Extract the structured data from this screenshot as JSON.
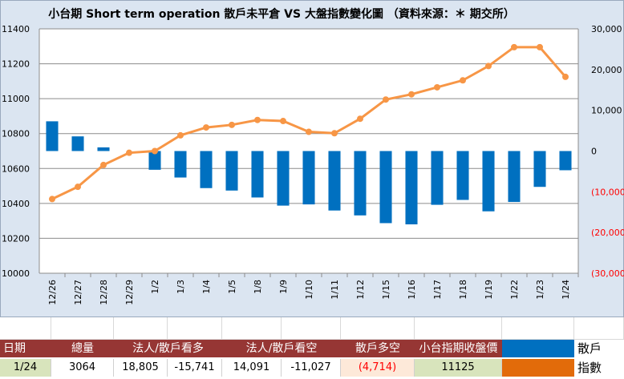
{
  "chart_data": {
    "type": "bar+line",
    "title": "小台期 Short term operation  散戶未平倉 VS 大盤指數變化圖  （資料來源：＊ 期交所）",
    "categories": [
      "12/26",
      "12/27",
      "12/28",
      "12/29",
      "1/2",
      "1/3",
      "1/4",
      "1/5",
      "1/8",
      "1/9",
      "1/10",
      "1/11",
      "1/12",
      "1/15",
      "1/16",
      "1/17",
      "1/18",
      "1/19",
      "1/22",
      "1/23",
      "1/24"
    ],
    "series": [
      {
        "name": "散戶",
        "type": "bar",
        "axis": "right",
        "color": "#0070c0",
        "values": [
          7300,
          3600,
          900,
          null,
          -4600,
          -6500,
          -9100,
          -9700,
          -11400,
          -13400,
          -13100,
          -14600,
          -15800,
          -17700,
          -18000,
          -13200,
          -12000,
          -14800,
          -12500,
          -8800,
          -4714
        ]
      },
      {
        "name": "指數",
        "type": "line",
        "axis": "left",
        "color": "#f79646",
        "values": [
          10425,
          10495,
          10620,
          10690,
          10700,
          10790,
          10835,
          10850,
          10878,
          10872,
          10810,
          10802,
          10885,
          10995,
          11025,
          11065,
          11105,
          11187,
          11295,
          11295,
          11125
        ]
      }
    ],
    "y_left": {
      "min": 10000,
      "max": 11400,
      "ticks": [
        "10000",
        "10200",
        "10400",
        "10600",
        "10800",
        "11000",
        "11200",
        "11400"
      ]
    },
    "y_right": {
      "min": -30000,
      "max": 30000,
      "ticks": [
        "30,000",
        "20,000",
        "10,000",
        "0",
        "(10,000)",
        "(20,000)",
        "(30,000)"
      ]
    },
    "grid": "horizontal",
    "legend": "table-bottom-right"
  },
  "table": {
    "headers": [
      "日期",
      "總量",
      "法人/散戶看多",
      "法人/散戶看空",
      "散戶多空",
      "小台指期收盤價"
    ],
    "values": [
      "1/24",
      "3064",
      "18,805",
      "-15,741",
      "14,091",
      "-11,027",
      "(4,714)",
      "11125"
    ],
    "legend": [
      {
        "label": "散戶",
        "color": "#0070c0"
      },
      {
        "label": "指數",
        "color": "#e26b0a"
      }
    ]
  }
}
